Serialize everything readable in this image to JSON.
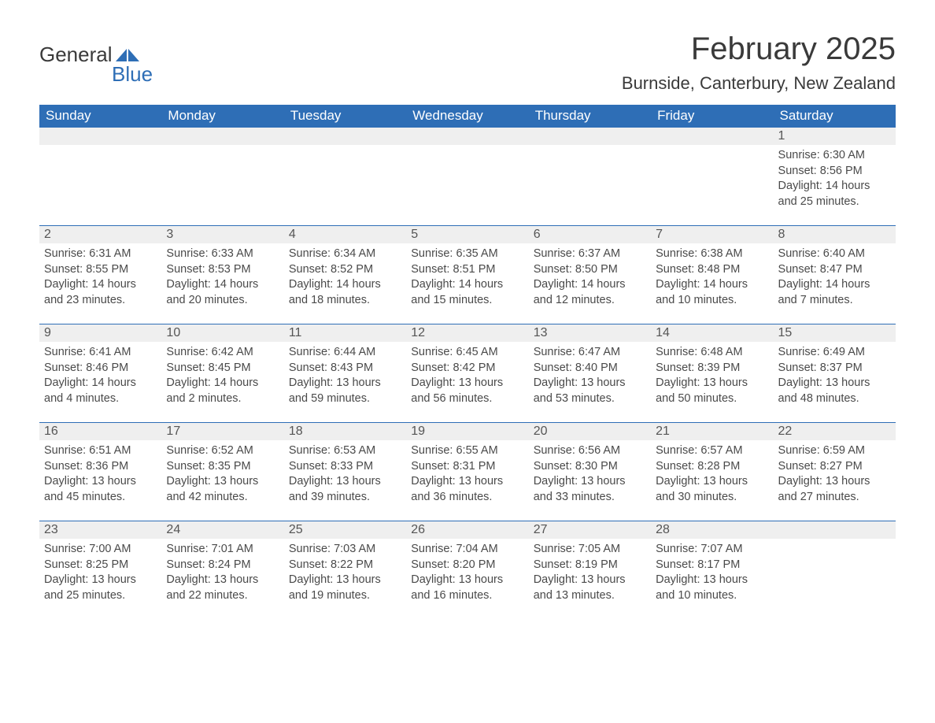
{
  "logo": {
    "text1": "General",
    "text2": "Blue"
  },
  "header": {
    "month_title": "February 2025",
    "location": "Burnside, Canterbury, New Zealand"
  },
  "colors": {
    "header_bg": "#2e6eb6",
    "daynum_bg": "#efefef",
    "text": "#4a4a4a"
  },
  "weekdays": [
    "Sunday",
    "Monday",
    "Tuesday",
    "Wednesday",
    "Thursday",
    "Friday",
    "Saturday"
  ],
  "weeks": [
    [
      null,
      null,
      null,
      null,
      null,
      null,
      {
        "n": "1",
        "sunrise": "6:30 AM",
        "sunset": "8:56 PM",
        "daylight": "14 hours and 25 minutes."
      }
    ],
    [
      {
        "n": "2",
        "sunrise": "6:31 AM",
        "sunset": "8:55 PM",
        "daylight": "14 hours and 23 minutes."
      },
      {
        "n": "3",
        "sunrise": "6:33 AM",
        "sunset": "8:53 PM",
        "daylight": "14 hours and 20 minutes."
      },
      {
        "n": "4",
        "sunrise": "6:34 AM",
        "sunset": "8:52 PM",
        "daylight": "14 hours and 18 minutes."
      },
      {
        "n": "5",
        "sunrise": "6:35 AM",
        "sunset": "8:51 PM",
        "daylight": "14 hours and 15 minutes."
      },
      {
        "n": "6",
        "sunrise": "6:37 AM",
        "sunset": "8:50 PM",
        "daylight": "14 hours and 12 minutes."
      },
      {
        "n": "7",
        "sunrise": "6:38 AM",
        "sunset": "8:48 PM",
        "daylight": "14 hours and 10 minutes."
      },
      {
        "n": "8",
        "sunrise": "6:40 AM",
        "sunset": "8:47 PM",
        "daylight": "14 hours and 7 minutes."
      }
    ],
    [
      {
        "n": "9",
        "sunrise": "6:41 AM",
        "sunset": "8:46 PM",
        "daylight": "14 hours and 4 minutes."
      },
      {
        "n": "10",
        "sunrise": "6:42 AM",
        "sunset": "8:45 PM",
        "daylight": "14 hours and 2 minutes."
      },
      {
        "n": "11",
        "sunrise": "6:44 AM",
        "sunset": "8:43 PM",
        "daylight": "13 hours and 59 minutes."
      },
      {
        "n": "12",
        "sunrise": "6:45 AM",
        "sunset": "8:42 PM",
        "daylight": "13 hours and 56 minutes."
      },
      {
        "n": "13",
        "sunrise": "6:47 AM",
        "sunset": "8:40 PM",
        "daylight": "13 hours and 53 minutes."
      },
      {
        "n": "14",
        "sunrise": "6:48 AM",
        "sunset": "8:39 PM",
        "daylight": "13 hours and 50 minutes."
      },
      {
        "n": "15",
        "sunrise": "6:49 AM",
        "sunset": "8:37 PM",
        "daylight": "13 hours and 48 minutes."
      }
    ],
    [
      {
        "n": "16",
        "sunrise": "6:51 AM",
        "sunset": "8:36 PM",
        "daylight": "13 hours and 45 minutes."
      },
      {
        "n": "17",
        "sunrise": "6:52 AM",
        "sunset": "8:35 PM",
        "daylight": "13 hours and 42 minutes."
      },
      {
        "n": "18",
        "sunrise": "6:53 AM",
        "sunset": "8:33 PM",
        "daylight": "13 hours and 39 minutes."
      },
      {
        "n": "19",
        "sunrise": "6:55 AM",
        "sunset": "8:31 PM",
        "daylight": "13 hours and 36 minutes."
      },
      {
        "n": "20",
        "sunrise": "6:56 AM",
        "sunset": "8:30 PM",
        "daylight": "13 hours and 33 minutes."
      },
      {
        "n": "21",
        "sunrise": "6:57 AM",
        "sunset": "8:28 PM",
        "daylight": "13 hours and 30 minutes."
      },
      {
        "n": "22",
        "sunrise": "6:59 AM",
        "sunset": "8:27 PM",
        "daylight": "13 hours and 27 minutes."
      }
    ],
    [
      {
        "n": "23",
        "sunrise": "7:00 AM",
        "sunset": "8:25 PM",
        "daylight": "13 hours and 25 minutes."
      },
      {
        "n": "24",
        "sunrise": "7:01 AM",
        "sunset": "8:24 PM",
        "daylight": "13 hours and 22 minutes."
      },
      {
        "n": "25",
        "sunrise": "7:03 AM",
        "sunset": "8:22 PM",
        "daylight": "13 hours and 19 minutes."
      },
      {
        "n": "26",
        "sunrise": "7:04 AM",
        "sunset": "8:20 PM",
        "daylight": "13 hours and 16 minutes."
      },
      {
        "n": "27",
        "sunrise": "7:05 AM",
        "sunset": "8:19 PM",
        "daylight": "13 hours and 13 minutes."
      },
      {
        "n": "28",
        "sunrise": "7:07 AM",
        "sunset": "8:17 PM",
        "daylight": "13 hours and 10 minutes."
      },
      null
    ]
  ],
  "labels": {
    "sunrise": "Sunrise: ",
    "sunset": "Sunset: ",
    "daylight": "Daylight: "
  }
}
